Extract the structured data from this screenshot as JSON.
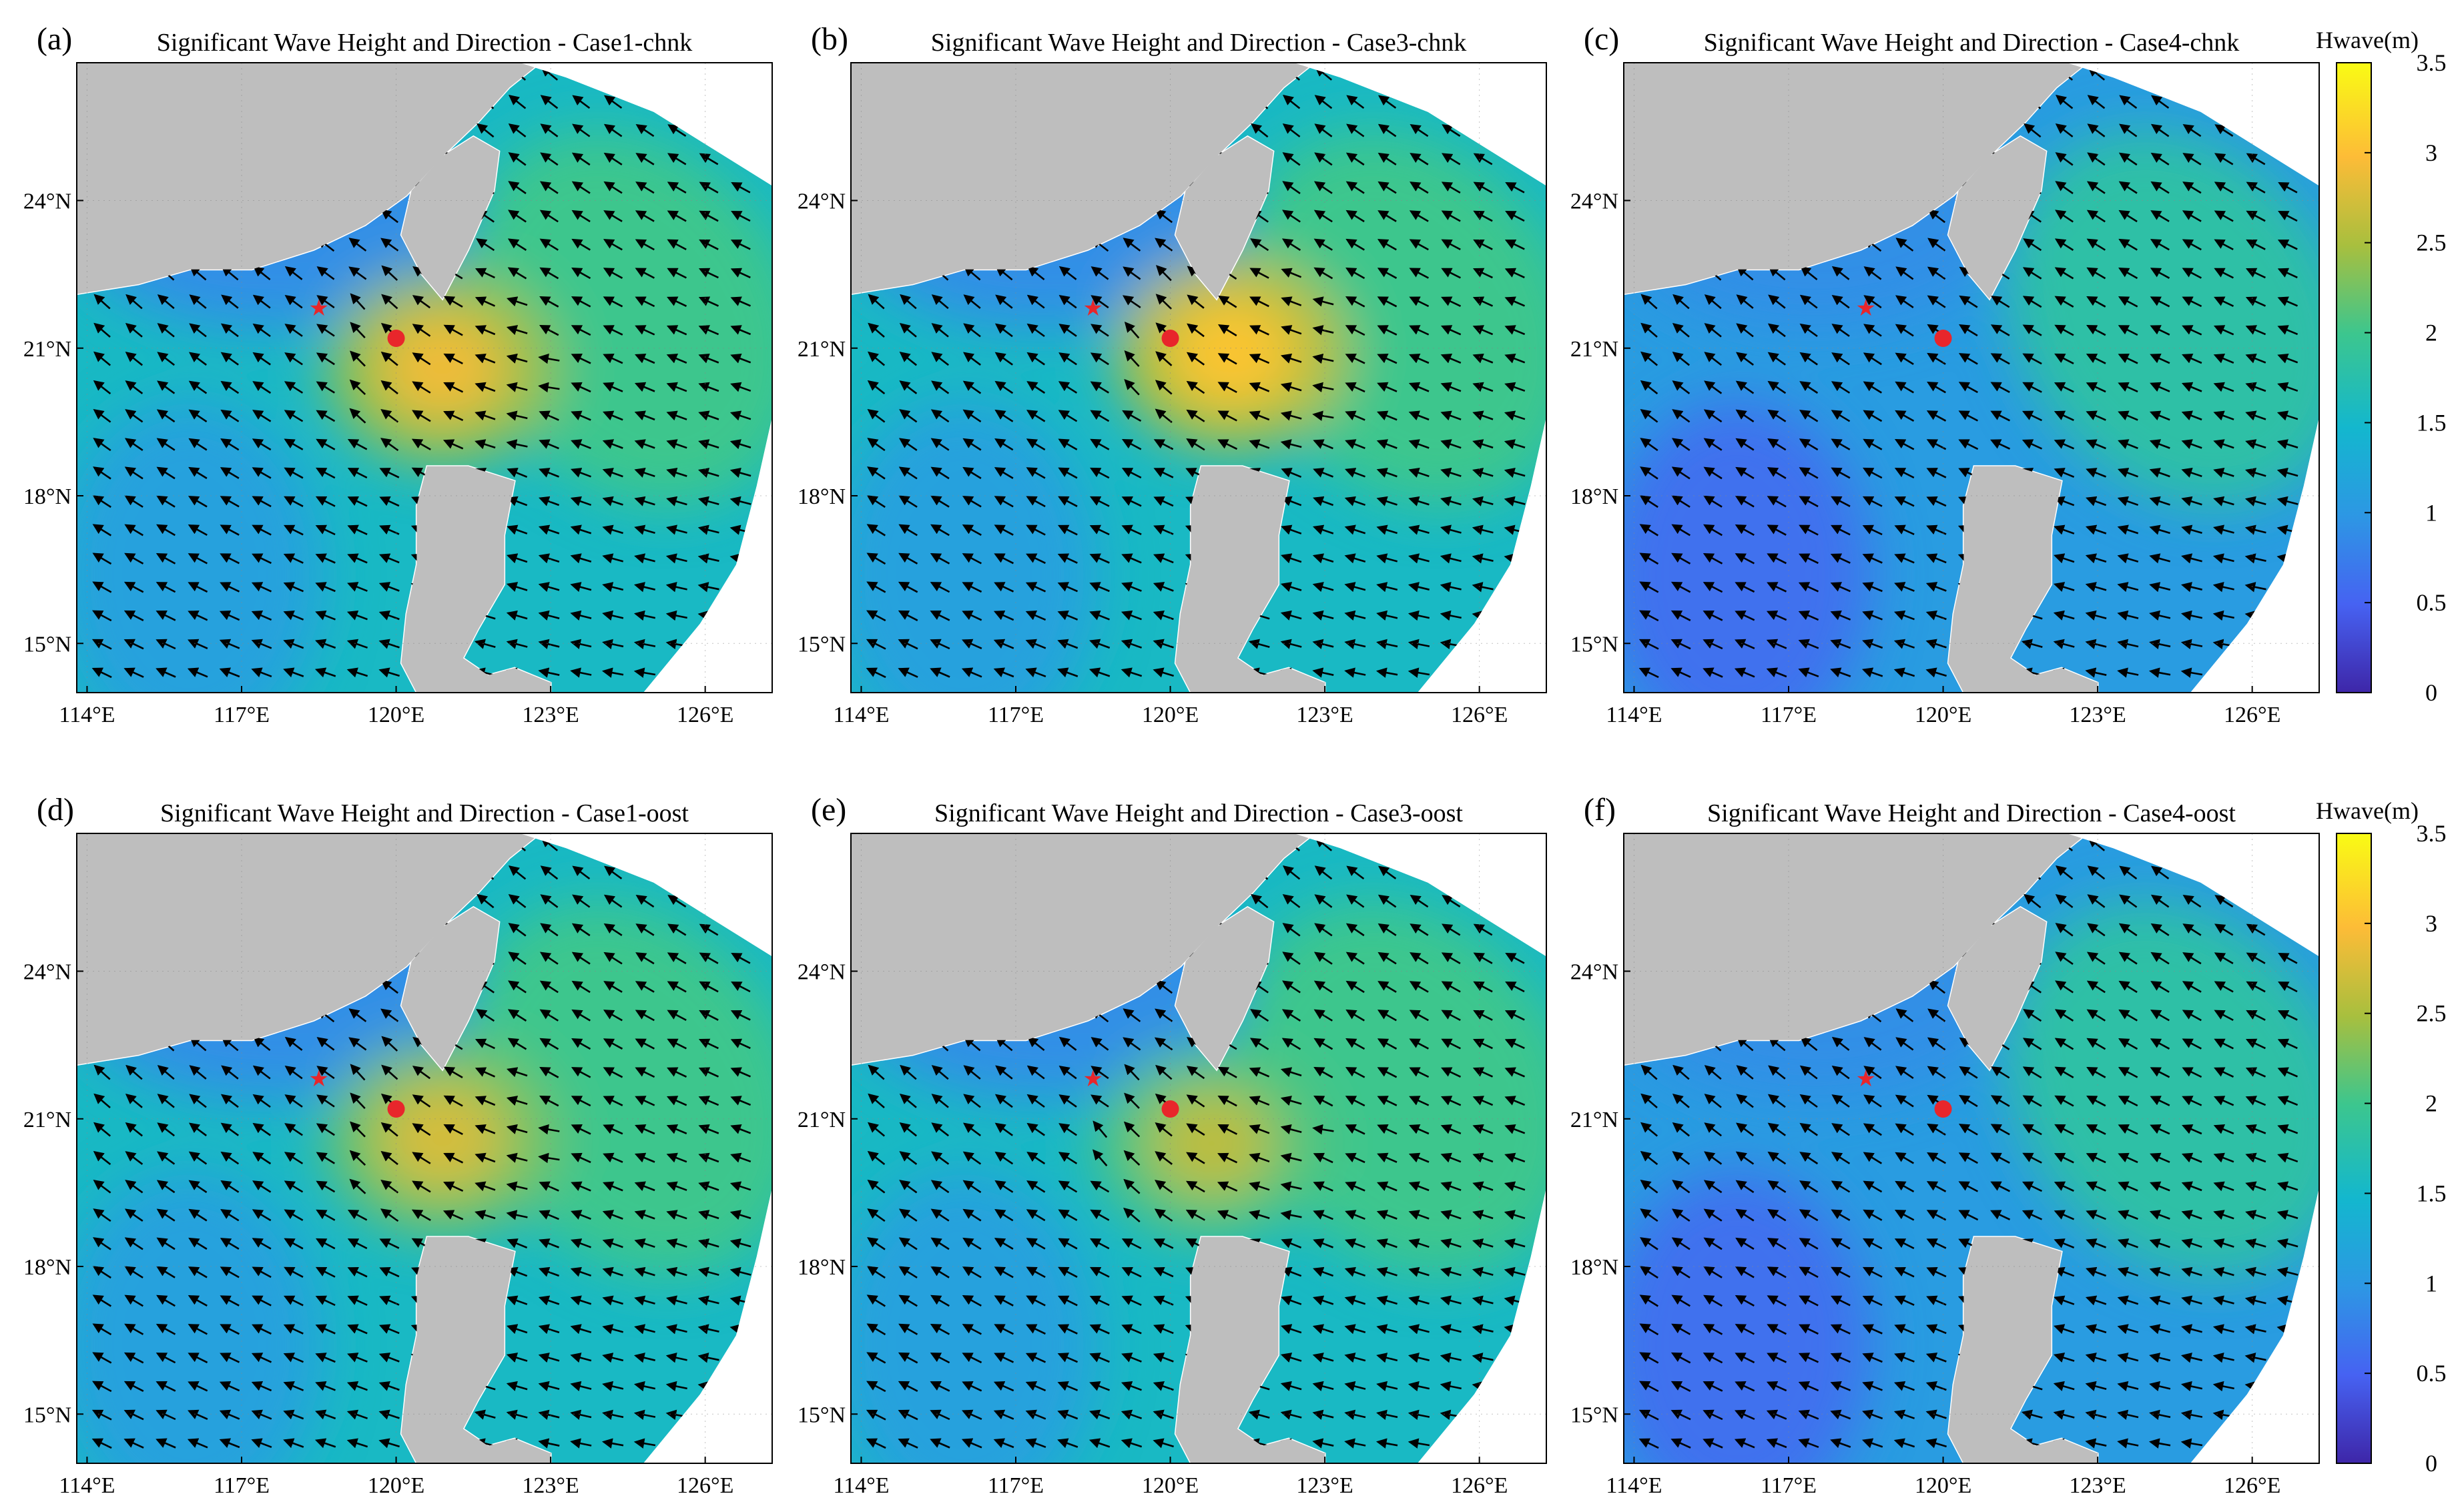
{
  "chart_data": {
    "type": "heatmap",
    "figure_colorbar": {
      "label": "Hwave(m)",
      "range": [
        0,
        3.5
      ],
      "ticks": [
        "0",
        "0.5",
        "1",
        "1.5",
        "2",
        "2.5",
        "3",
        "3.5"
      ],
      "colormap": "parula"
    },
    "x_ticks": [
      "114°E",
      "117°E",
      "120°E",
      "123°E",
      "126°E"
    ],
    "x_tick_values": [
      114,
      117,
      120,
      123,
      126
    ],
    "y_ticks": [
      "15°N",
      "18°N",
      "21°N",
      "24°N"
    ],
    "y_tick_values": [
      15,
      18,
      21,
      24
    ],
    "xlim": [
      113.8,
      127.3
    ],
    "ylim": [
      14.0,
      26.8
    ],
    "markers": {
      "star": {
        "lon": 118.5,
        "lat": 21.8,
        "color": "#e8262b"
      },
      "circle": {
        "lon": 120.0,
        "lat": 21.2,
        "color": "#e8262b"
      }
    },
    "panels": [
      {
        "letter": "(a)",
        "title": "Significant Wave Height and Direction - Case1-chnk",
        "hotspot": {
          "lon": 120.9,
          "lat": 20.6,
          "peak": 2.9
        },
        "background": 1.55,
        "ne_band": 2.0,
        "cb": true
      },
      {
        "letter": "(b)",
        "title": "Significant Wave Height and Direction - Case3-chnk",
        "hotspot": {
          "lon": 121.2,
          "lat": 20.9,
          "peak": 3.05
        },
        "background": 1.55,
        "ne_band": 2.0,
        "cb": false
      },
      {
        "letter": "(c)",
        "title": "Significant Wave Height and Direction - Case4-chnk",
        "hotspot": null,
        "background": 1.05,
        "ne_band": 1.8,
        "cb": true
      },
      {
        "letter": "(d)",
        "title": "Significant Wave Height and Direction - Case1-oost",
        "hotspot": {
          "lon": 120.9,
          "lat": 20.6,
          "peak": 2.75
        },
        "background": 1.55,
        "ne_band": 2.0,
        "cb": false
      },
      {
        "letter": "(e)",
        "title": "Significant Wave Height and Direction - Case3-oost",
        "hotspot": {
          "lon": 120.8,
          "lat": 20.5,
          "peak": 2.6
        },
        "background": 1.55,
        "ne_band": 2.0,
        "cb": false
      },
      {
        "letter": "(f)",
        "title": "Significant Wave Height and Direction - Case4-oost",
        "hotspot": null,
        "background": 1.05,
        "ne_band": 1.8,
        "cb": true
      }
    ]
  }
}
